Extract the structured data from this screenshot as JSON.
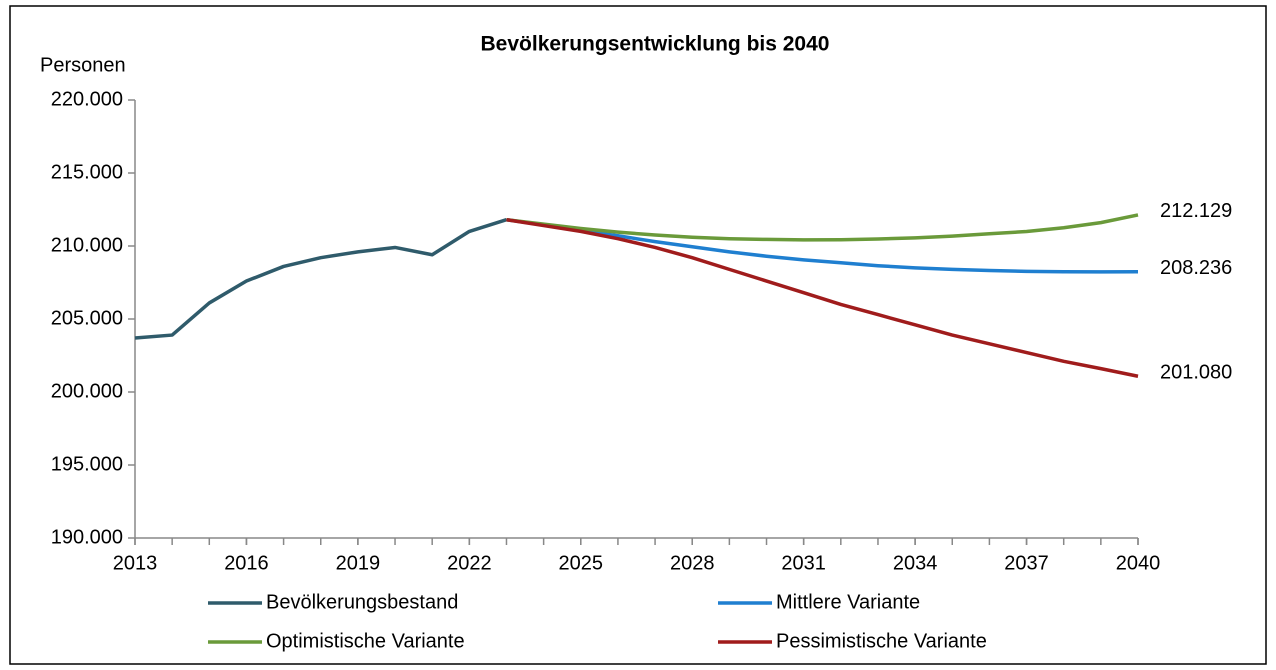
{
  "chart_data": {
    "type": "line",
    "title": "Bevölkerungsentwicklung bis 2040",
    "ylabel": "Personen",
    "x": [
      2013,
      2014,
      2015,
      2016,
      2017,
      2018,
      2019,
      2020,
      2021,
      2022,
      2023,
      2024,
      2025,
      2026,
      2027,
      2028,
      2029,
      2030,
      2031,
      2032,
      2033,
      2034,
      2035,
      2036,
      2037,
      2038,
      2039,
      2040
    ],
    "xlim": [
      2013,
      2040
    ],
    "xticks": [
      2013,
      2016,
      2019,
      2022,
      2025,
      2028,
      2031,
      2034,
      2037,
      2040
    ],
    "ylim": [
      190000,
      220000
    ],
    "yticks": [
      {
        "value": 190000,
        "label": "190.000"
      },
      {
        "value": 195000,
        "label": "195.000"
      },
      {
        "value": 200000,
        "label": "200.000"
      },
      {
        "value": 205000,
        "label": "205.000"
      },
      {
        "value": 210000,
        "label": "210.000"
      },
      {
        "value": 215000,
        "label": "215.000"
      },
      {
        "value": 220000,
        "label": "220.000"
      }
    ],
    "grid": false,
    "series": [
      {
        "name": "Bevölkerungsbestand",
        "color": "#2f5b6b",
        "values": [
          203700,
          203900,
          206100,
          207600,
          208600,
          209200,
          209600,
          209900,
          209400,
          211000,
          211800,
          null,
          null,
          null,
          null,
          null,
          null,
          null,
          null,
          null,
          null,
          null,
          null,
          null,
          null,
          null,
          null,
          null
        ]
      },
      {
        "name": "Mittlere Variante",
        "color": "#1f7fd0",
        "values": [
          null,
          null,
          null,
          null,
          null,
          null,
          null,
          null,
          null,
          null,
          211800,
          211450,
          211050,
          210700,
          210300,
          209950,
          209600,
          209300,
          209050,
          208850,
          208650,
          208500,
          208400,
          208320,
          208260,
          208240,
          208230,
          208236
        ],
        "value_labels": [
          null,
          null,
          null,
          null,
          null,
          null,
          null,
          null,
          null,
          null,
          null,
          null,
          null,
          null,
          null,
          null,
          null,
          null,
          null,
          null,
          null,
          null,
          null,
          null,
          null,
          null,
          null,
          "208.236"
        ]
      },
      {
        "name": "Optimistische Variante",
        "color": "#6a9a3a",
        "values": [
          null,
          null,
          null,
          null,
          null,
          null,
          null,
          null,
          null,
          null,
          211800,
          211500,
          211200,
          210950,
          210750,
          210600,
          210500,
          210450,
          210420,
          210430,
          210480,
          210560,
          210680,
          210840,
          210990,
          211250,
          211600,
          212129
        ],
        "value_labels": [
          null,
          null,
          null,
          null,
          null,
          null,
          null,
          null,
          null,
          null,
          null,
          null,
          null,
          null,
          null,
          null,
          null,
          null,
          null,
          null,
          null,
          null,
          null,
          null,
          null,
          null,
          null,
          "212.129"
        ]
      },
      {
        "name": "Pessimistische Variante",
        "color": "#a01c1c",
        "values": [
          null,
          null,
          null,
          null,
          null,
          null,
          null,
          null,
          null,
          null,
          211800,
          211400,
          211000,
          210500,
          209900,
          209200,
          208400,
          207600,
          206800,
          206000,
          205300,
          204600,
          203900,
          203300,
          202700,
          202100,
          201600,
          201080
        ],
        "value_labels": [
          null,
          null,
          null,
          null,
          null,
          null,
          null,
          null,
          null,
          null,
          null,
          null,
          null,
          null,
          null,
          null,
          null,
          null,
          null,
          null,
          null,
          null,
          null,
          null,
          null,
          null,
          null,
          "201.080"
        ]
      }
    ]
  }
}
